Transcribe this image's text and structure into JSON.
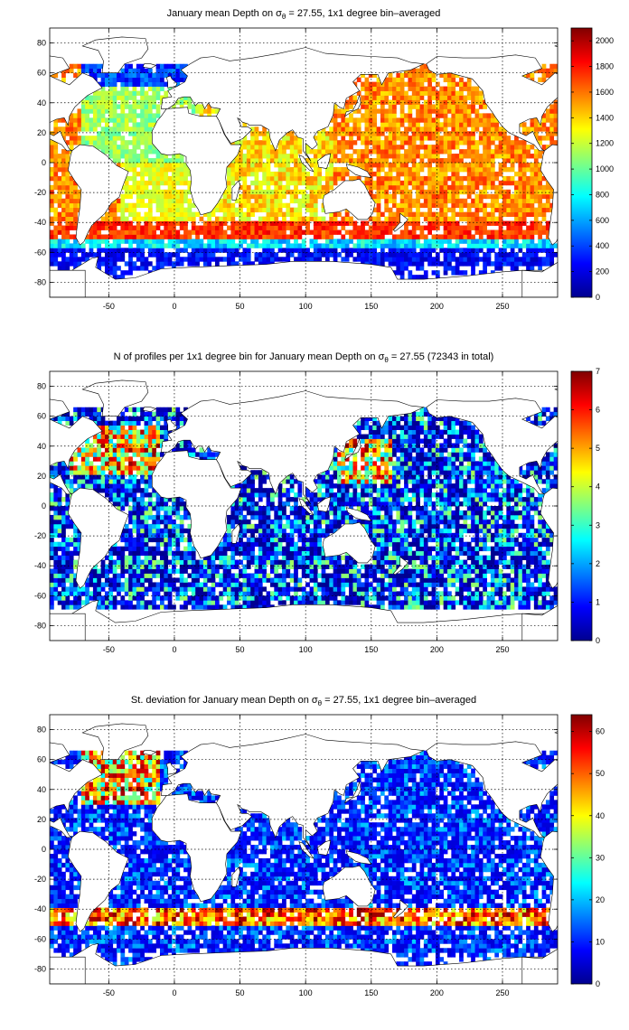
{
  "figure": {
    "window_title": "",
    "colormap": [
      "#00008f",
      "#0000ff",
      "#0080ff",
      "#00ffff",
      "#80ff80",
      "#ffff00",
      "#ff8000",
      "#ff0000",
      "#800000"
    ]
  },
  "chart_data": [
    {
      "type": "heatmap",
      "title_prefix": "January mean Depth on σ",
      "title_sub": "θ",
      "title_suffix": " = 27.55, 1x1 degree bin–averaged",
      "xlabel": "",
      "ylabel": "",
      "xlim": [
        -95,
        292
      ],
      "ylim": [
        -90,
        90
      ],
      "xticks": [
        -50,
        0,
        50,
        100,
        150,
        200,
        250
      ],
      "yticks": [
        -80,
        -60,
        -40,
        -20,
        0,
        20,
        40,
        60,
        80
      ],
      "grid": true,
      "colorbar": {
        "min": 0,
        "max": 2100,
        "ticks": [
          0,
          200,
          400,
          600,
          800,
          1000,
          1200,
          1400,
          1600,
          1800,
          2000
        ]
      },
      "field": "depth"
    },
    {
      "type": "heatmap",
      "title_prefix": "N of profiles per 1x1 degree bin for January mean Depth on σ",
      "title_sub": "θ",
      "title_suffix": " = 27.55 (72343 in total)",
      "xlabel": "",
      "ylabel": "",
      "xlim": [
        -95,
        292
      ],
      "ylim": [
        -90,
        90
      ],
      "xticks": [
        -50,
        0,
        50,
        100,
        150,
        200,
        250
      ],
      "yticks": [
        -80,
        -60,
        -40,
        -20,
        0,
        20,
        40,
        60,
        80
      ],
      "grid": true,
      "colorbar": {
        "min": 0,
        "max": 7,
        "ticks": [
          0,
          1,
          2,
          3,
          4,
          5,
          6,
          7
        ]
      },
      "total_profiles": 72343,
      "field": "count"
    },
    {
      "type": "heatmap",
      "title_prefix": "St. deviation for January mean Depth on σ",
      "title_sub": "θ",
      "title_suffix": " = 27.55, 1x1 degree bin–averaged",
      "xlabel": "",
      "ylabel": "",
      "xlim": [
        -95,
        292
      ],
      "ylim": [
        -90,
        90
      ],
      "xticks": [
        -50,
        0,
        50,
        100,
        150,
        200,
        250
      ],
      "yticks": [
        -80,
        -60,
        -40,
        -20,
        0,
        20,
        40,
        60,
        80
      ],
      "grid": true,
      "colorbar": {
        "min": 0,
        "max": 64,
        "ticks": [
          0,
          10,
          20,
          30,
          40,
          50,
          60
        ]
      },
      "field": "std"
    }
  ]
}
